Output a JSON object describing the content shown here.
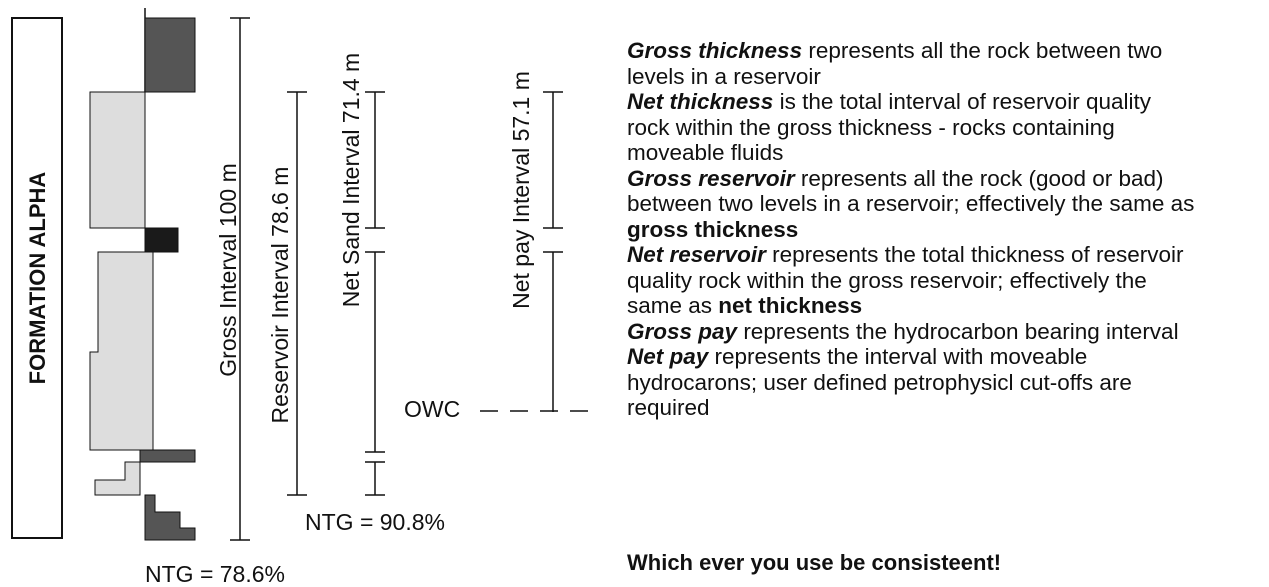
{
  "formation": "FORMATION ALPHA",
  "intervals": {
    "gross": "Gross Interval 100 m",
    "reservoir": "Reservoir Interval 78.6 m",
    "net_sand": "Net Sand Interval 71.4 m",
    "net_pay": "Net pay Interval 57.1 m"
  },
  "owc": "OWC",
  "ntg_net_sand": "NTG = 90.8%",
  "ntg_reservoir": "NTG = 78.6%",
  "definitions": [
    {
      "parts": [
        {
          "text": "Gross thickness",
          "style": "bold-italic"
        },
        {
          "text": " represents all the rock between two levels in a reservoir"
        }
      ]
    },
    {
      "parts": [
        {
          "text": "Net thickness",
          "style": "bold-italic"
        },
        {
          "text": " is the total interval of reservoir quality rock within the gross thickness - rocks containing moveable fluids"
        }
      ]
    },
    {
      "parts": [
        {
          "text": "Gross reservoir",
          "style": "bold-italic"
        },
        {
          "text": " represents all the rock (good or bad) between two levels in a reservoir; effectively the same as "
        },
        {
          "text": "gross thickness",
          "style": "bold"
        }
      ]
    },
    {
      "parts": [
        {
          "text": "Net reservoir",
          "style": "bold-italic"
        },
        {
          "text": " represents the total thickness of reservoir quality rock within the gross reservoir; effectively the same as "
        },
        {
          "text": "net thickness",
          "style": "bold"
        }
      ]
    },
    {
      "parts": [
        {
          "text": "Gross pay",
          "style": "bold-italic"
        },
        {
          "text": " represents the hydrocarbon bearing interval"
        }
      ]
    },
    {
      "parts": [
        {
          "text": "Net pay",
          "style": "bold-italic"
        },
        {
          "text": " represents the interval with moveable hydrocarons; user defined petrophysicl cut-offs are required"
        }
      ]
    }
  ],
  "conclusion": "Which ever you use be consisteent!"
}
